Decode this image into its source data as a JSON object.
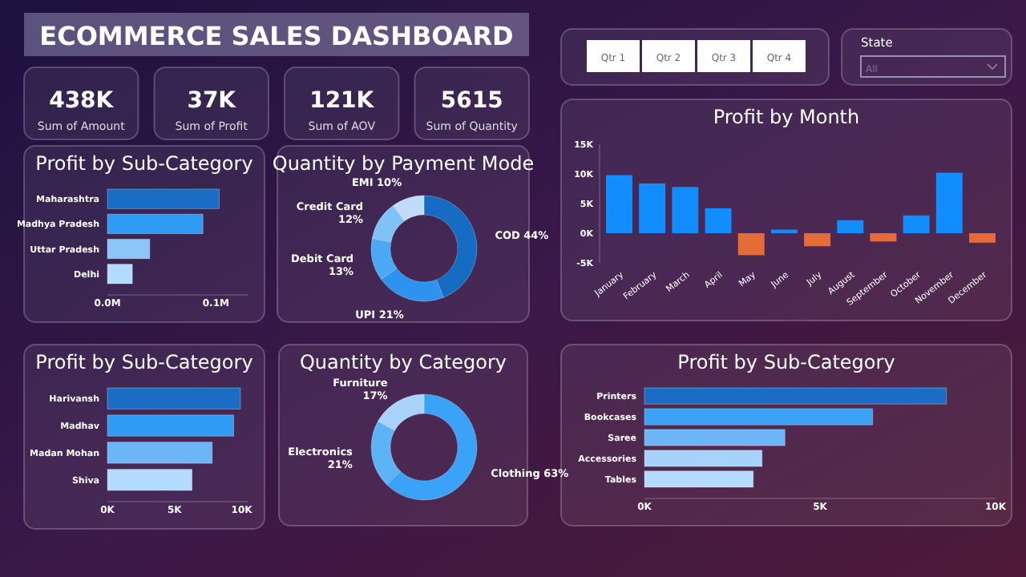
{
  "chart_data": [
    {
      "type": "other",
      "title": "ECOMMERCE SALES DASHBOARD",
      "annotations": [
        "438K",
        "Sum of Amount",
        "37K",
        "Sum of Profit",
        "121K",
        "Sum of AOV",
        "5615",
        "Sum of Quantity"
      ]
    },
    {
      "type": "other",
      "categories": [
        "Qtr 1",
        "Qtr 2",
        "Qtr 3",
        "Qtr 4"
      ],
      "annotations": [
        "State",
        "All"
      ]
    },
    {
      "type": "bar",
      "orientation": "horizontal",
      "title": "Profit by Sub-Category",
      "categories": [
        "Maharashtra",
        "Madhya Pradesh",
        "Uttar Pradesh",
        "Delhi"
      ],
      "values": [
        0.103,
        0.088,
        0.039,
        0.023
      ],
      "colors": [
        "#1a6cc4",
        "#2f9bf4",
        "#8cc6f8",
        "#b3daff"
      ],
      "xlim": [
        0,
        0.13
      ],
      "xticks": [
        {
          "value": 0,
          "label": "0.0M"
        },
        {
          "value": 0.1,
          "label": "0.1M"
        }
      ]
    },
    {
      "type": "donut",
      "title": "Quantity by Payment Mode",
      "categories": [
        "COD",
        "UPI",
        "Debit Card",
        "Credit Card",
        "EMI"
      ],
      "values": [
        44,
        21,
        13,
        12,
        10
      ],
      "value_labels": [
        "44%",
        "21%",
        "13%",
        "12%",
        "10%"
      ],
      "colors": [
        "#166cc2",
        "#2e93ee",
        "#4aa9f2",
        "#80c2f6",
        "#c0dcfa"
      ]
    },
    {
      "type": "bar",
      "title": "Profit by Month",
      "categories": [
        "January",
        "February",
        "March",
        "April",
        "May",
        "June",
        "July",
        "August",
        "September",
        "October",
        "November",
        "December"
      ],
      "values": [
        9800,
        8400,
        7800,
        4200,
        -3700,
        600,
        -2200,
        2200,
        -1400,
        3000,
        10200,
        -1600
      ],
      "colors": [
        "#118dff",
        "#118dff",
        "#118dff",
        "#118dff",
        "#e66c37",
        "#118dff",
        "#e66c37",
        "#118dff",
        "#e66c37",
        "#118dff",
        "#118dff",
        "#e66c37"
      ],
      "ylim": [
        -5000,
        15000
      ],
      "yticks": [
        {
          "value": -5000,
          "label": "-5K"
        },
        {
          "value": 0,
          "label": "0K"
        },
        {
          "value": 5000,
          "label": "5K"
        },
        {
          "value": 10000,
          "label": "10K"
        },
        {
          "value": 15000,
          "label": "15K"
        }
      ]
    },
    {
      "type": "bar",
      "orientation": "horizontal",
      "title": "Profit by Sub-Category",
      "categories": [
        "Harivansh",
        "Madhav",
        "Madan Mohan",
        "Shiva"
      ],
      "values": [
        9900,
        9400,
        7800,
        6300
      ],
      "colors": [
        "#1a6cc4",
        "#2f9bf4",
        "#6cb6f7",
        "#b3daff"
      ],
      "xlim": [
        0,
        10500
      ],
      "xticks": [
        {
          "value": 0,
          "label": "0K"
        },
        {
          "value": 5000,
          "label": "5K"
        },
        {
          "value": 10000,
          "label": "10K"
        }
      ]
    },
    {
      "type": "donut",
      "title": "Quantity by Category",
      "categories": [
        "Clothing",
        "Electronics",
        "Furniture"
      ],
      "values": [
        63,
        21,
        17
      ],
      "value_labels": [
        "63%",
        "21%",
        "17%"
      ],
      "colors": [
        "#3aa3f7",
        "#5cb3f5",
        "#a9d3fa"
      ]
    },
    {
      "type": "bar",
      "orientation": "horizontal",
      "title": "Profit by Sub-Category",
      "categories": [
        "Printers",
        "Bookcases",
        "Saree",
        "Accessories",
        "Tables"
      ],
      "values": [
        8600,
        6500,
        4000,
        3350,
        3100
      ],
      "colors": [
        "#1a6cc4",
        "#3ba2f6",
        "#6cb6f7",
        "#a6d2fb",
        "#b3daff"
      ],
      "xlim": [
        0,
        10000
      ],
      "xticks": [
        {
          "value": 0,
          "label": "0K"
        },
        {
          "value": 5000,
          "label": "5K"
        },
        {
          "value": 10000,
          "label": "10K"
        }
      ]
    }
  ]
}
